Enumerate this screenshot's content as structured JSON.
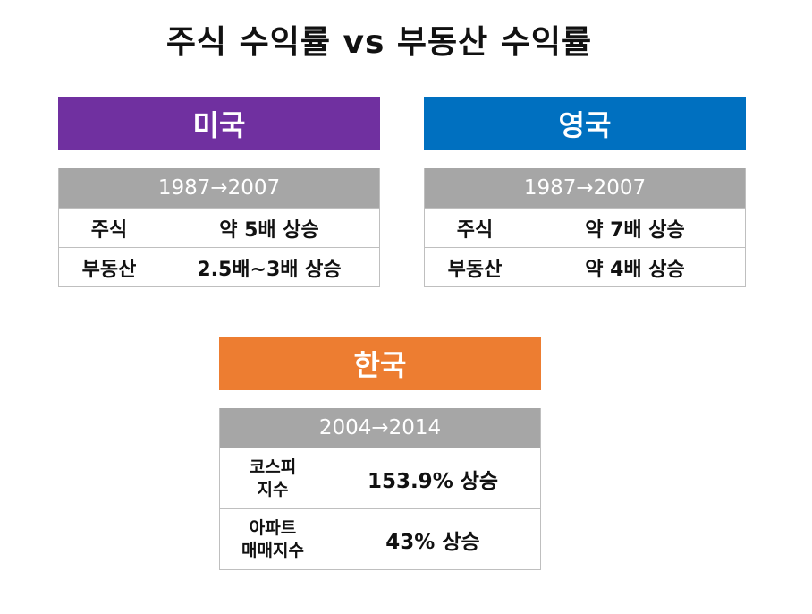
{
  "title": "주식 수익률 vs 부동산 수익률",
  "colors": {
    "us": "#7030a0",
    "uk": "#0070c0",
    "kr": "#ed7d31",
    "header_gray": "#a6a6a6"
  },
  "sections": {
    "us": {
      "name": "미국",
      "period": "1987→2007",
      "rows": [
        {
          "label": "주식",
          "value": "약 5배 상승"
        },
        {
          "label": "부동산",
          "value": "2.5배~3배 상승"
        }
      ]
    },
    "uk": {
      "name": "영국",
      "period": "1987→2007",
      "rows": [
        {
          "label": "주식",
          "value": "약 7배 상승"
        },
        {
          "label": "부동산",
          "value": "약 4배 상승"
        }
      ]
    },
    "kr": {
      "name": "한국",
      "period": "2004→2014",
      "rows": [
        {
          "label_line1": "코스피",
          "label_line2": "지수",
          "value": "153.9% 상승"
        },
        {
          "label_line1": "아파트",
          "label_line2": "매매지수",
          "value": "43% 상승"
        }
      ]
    }
  }
}
